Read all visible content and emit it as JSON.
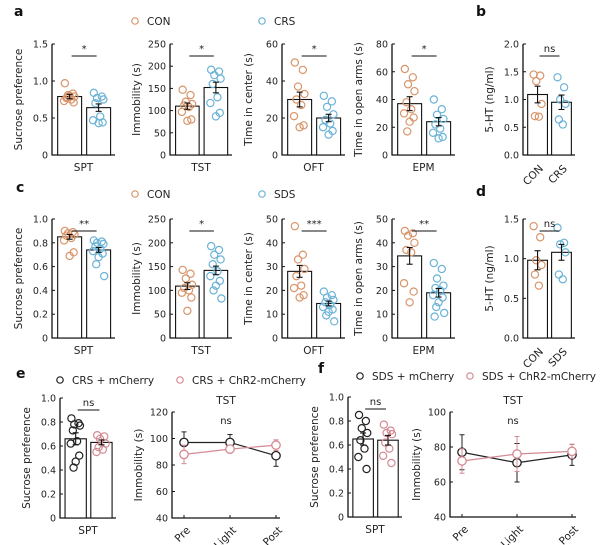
{
  "colors": {
    "con": "#d9956a",
    "stress": "#6bb3d6",
    "mcherry": "#222222",
    "chr2": "#d48a92",
    "axis": "#111111"
  },
  "chart_data": [
    {
      "panel": "a",
      "type": "bar",
      "legend": [
        {
          "label": "CON",
          "color_key": "con"
        },
        {
          "label": "CRS",
          "color_key": "stress"
        }
      ],
      "subplots": [
        {
          "xlabel": "SPT",
          "ylabel": "Sucrose preference",
          "ylim": [
            0,
            1.5
          ],
          "yticks": [
            "0",
            "0.5",
            "1.0",
            "1.5"
          ],
          "ytick_values": [
            0,
            0.5,
            1.0,
            1.5
          ],
          "sig": "*",
          "groups": [
            {
              "name": "CON",
              "mean": 0.79,
              "sem": 0.03,
              "points": [
                0.97,
                0.83,
                0.81,
                0.79,
                0.77,
                0.75,
                0.73,
                0.71,
                0.8,
                0.78
              ]
            },
            {
              "name": "CRS",
              "mean": 0.64,
              "sem": 0.05,
              "points": [
                0.84,
                0.79,
                0.77,
                0.75,
                0.7,
                0.52,
                0.47,
                0.44,
                0.43
              ]
            }
          ]
        },
        {
          "xlabel": "TST",
          "ylabel": "Immobility (s)",
          "ylim": [
            0,
            250
          ],
          "yticks": [
            "0",
            "50",
            "100",
            "150",
            "200",
            "250"
          ],
          "ytick_values": [
            0,
            50,
            100,
            150,
            200,
            250
          ],
          "sig": "*",
          "groups": [
            {
              "name": "CON",
              "mean": 110,
              "sem": 7,
              "points": [
                147,
                135,
                120,
                115,
                112,
                108,
                97,
                80,
                77
              ]
            },
            {
              "name": "CRS",
              "mean": 152,
              "sem": 12,
              "points": [
                192,
                188,
                180,
                172,
                160,
                130,
                117,
                95,
                87
              ]
            }
          ]
        },
        {
          "xlabel": "OFT",
          "ylabel": "Time in center (s)",
          "ylim": [
            0,
            60
          ],
          "yticks": [
            "0",
            "20",
            "40",
            "60"
          ],
          "ytick_values": [
            0,
            20,
            40,
            60
          ],
          "sig": "*",
          "groups": [
            {
              "name": "CON",
              "mean": 30,
              "sem": 4,
              "points": [
                50,
                46,
                37,
                33,
                30,
                27,
                21,
                16,
                15
              ]
            },
            {
              "name": "CRS",
              "mean": 20,
              "sem": 2,
              "points": [
                32,
                29,
                26,
                22,
                19,
                17,
                15,
                13,
                11
              ]
            }
          ]
        },
        {
          "xlabel": "EPM",
          "ylabel": "Time in open arms (s)",
          "ylim": [
            0,
            80
          ],
          "yticks": [
            "0",
            "20",
            "40",
            "60",
            "80"
          ],
          "ytick_values": [
            0,
            20,
            40,
            60,
            80
          ],
          "sig": "*",
          "groups": [
            {
              "name": "CON",
              "mean": 37,
              "sem": 5,
              "points": [
                62,
                56,
                51,
                46,
                38,
                33,
                30,
                27,
                24,
                17
              ]
            },
            {
              "name": "CRS",
              "mean": 24,
              "sem": 3,
              "points": [
                40,
                33,
                29,
                26,
                22,
                19,
                16,
                13,
                12
              ]
            }
          ]
        }
      ]
    },
    {
      "panel": "b",
      "type": "bar",
      "subplots": [
        {
          "xlabel": "",
          "xticks": [
            "CON",
            "CRS"
          ],
          "ylabel": "5-HT (ng/ml)",
          "ylim": [
            0,
            2.0
          ],
          "yticks": [
            "0.0",
            "0.5",
            "1.0",
            "1.5",
            "2.0"
          ],
          "ytick_values": [
            0,
            0.5,
            1.0,
            1.5,
            2.0
          ],
          "sig": "ns",
          "groups": [
            {
              "name": "CON",
              "mean": 1.09,
              "sem": 0.15,
              "points": [
                1.45,
                1.43,
                1.33,
                0.92,
                0.7,
                0.69
              ]
            },
            {
              "name": "CRS",
              "mean": 0.95,
              "sem": 0.13,
              "points": [
                1.4,
                1.22,
                1.0,
                0.92,
                0.64,
                0.55
              ]
            }
          ]
        }
      ]
    },
    {
      "panel": "c",
      "type": "bar",
      "legend": [
        {
          "label": "CON",
          "color_key": "con"
        },
        {
          "label": "SDS",
          "color_key": "stress"
        }
      ],
      "subplots": [
        {
          "xlabel": "SPT",
          "ylabel": "Sucrose preference",
          "ylim": [
            0,
            1.0
          ],
          "yticks": [
            "0",
            "0.2",
            "0.4",
            "0.6",
            "0.8",
            "1.0"
          ],
          "ytick_values": [
            0,
            0.2,
            0.4,
            0.6,
            0.8,
            1.0
          ],
          "sig": "**",
          "groups": [
            {
              "name": "CON",
              "mean": 0.85,
              "sem": 0.02,
              "points": [
                0.9,
                0.89,
                0.88,
                0.87,
                0.86,
                0.84,
                0.82,
                0.72,
                0.69
              ]
            },
            {
              "name": "SDS",
              "mean": 0.74,
              "sem": 0.02,
              "points": [
                0.82,
                0.81,
                0.8,
                0.79,
                0.77,
                0.75,
                0.73,
                0.71,
                0.68,
                0.62,
                0.52
              ]
            }
          ]
        },
        {
          "xlabel": "TST",
          "ylabel": "Immobility (s)",
          "ylim": [
            0,
            250
          ],
          "yticks": [
            "0",
            "50",
            "100",
            "150",
            "200",
            "250"
          ],
          "ytick_values": [
            0,
            50,
            100,
            150,
            200,
            250
          ],
          "sig": "*",
          "groups": [
            {
              "name": "CON",
              "mean": 109,
              "sem": 7,
              "points": [
                143,
                135,
                125,
                112,
                105,
                100,
                95,
                85,
                57
              ]
            },
            {
              "name": "SDS",
              "mean": 142,
              "sem": 9,
              "points": [
                193,
                185,
                175,
                165,
                155,
                140,
                130,
                120,
                110,
                100,
                83
              ]
            }
          ]
        },
        {
          "xlabel": "OFT",
          "ylabel": "Time in center (s)",
          "ylim": [
            0,
            50
          ],
          "yticks": [
            "0",
            "10",
            "20",
            "30",
            "40",
            "50"
          ],
          "ytick_values": [
            0,
            10,
            20,
            30,
            40,
            50
          ],
          "sig": "***",
          "groups": [
            {
              "name": "CON",
              "mean": 28,
              "sem": 2.5,
              "points": [
                47,
                35,
                33,
                29,
                26,
                22,
                21,
                18,
                17
              ]
            },
            {
              "name": "SDS",
              "mean": 14.5,
              "sem": 1,
              "points": [
                19.5,
                18,
                17,
                16,
                15,
                14,
                13,
                12,
                11,
                9.5,
                7
              ]
            }
          ]
        },
        {
          "xlabel": "EPM",
          "ylabel": "Time in open arms (s)",
          "ylim": [
            0,
            50
          ],
          "yticks": [
            "0",
            "10",
            "20",
            "30",
            "40",
            "50"
          ],
          "ytick_values": [
            0,
            10,
            20,
            30,
            40,
            50
          ],
          "sig": "**",
          "groups": [
            {
              "name": "CON",
              "mean": 34.5,
              "sem": 3.5,
              "points": [
                45,
                44,
                43,
                40,
                37,
                36,
                23,
                19.5,
                15
              ]
            },
            {
              "name": "SDS",
              "mean": 19,
              "sem": 1.8,
              "points": [
                31.5,
                29,
                25,
                22,
                21,
                20,
                18,
                17,
                15,
                13,
                10.5,
                9
              ]
            }
          ]
        }
      ]
    },
    {
      "panel": "d",
      "type": "bar",
      "subplots": [
        {
          "xlabel": "",
          "xticks": [
            "CON",
            "SDS"
          ],
          "ylabel": "5-HT (ng/ml)",
          "ylim": [
            0,
            1.5
          ],
          "yticks": [
            "0.0",
            "0.5",
            "1.0",
            "1.5"
          ],
          "ytick_values": [
            0,
            0.5,
            1.0,
            1.5
          ],
          "sig": "ns",
          "groups": [
            {
              "name": "CON",
              "mean": 0.98,
              "sem": 0.12,
              "points": [
                1.41,
                1.27,
                0.98,
                0.92,
                0.8,
                0.66
              ]
            },
            {
              "name": "SDS",
              "mean": 1.08,
              "sem": 0.1,
              "points": [
                1.39,
                1.2,
                1.18,
                1.08,
                0.8,
                0.74
              ]
            }
          ]
        }
      ]
    },
    {
      "panel": "e",
      "type": "bar+line",
      "legend": [
        {
          "label": "CRS + mCherry",
          "color_key": "mcherry"
        },
        {
          "label": "CRS + ChR2-mCherry",
          "color_key": "chr2"
        }
      ],
      "subplots": [
        {
          "kind": "bar",
          "xlabel": "SPT",
          "ylabel": "Sucrose preference",
          "ylim": [
            0,
            1.0
          ],
          "yticks": [
            "0",
            "0.2",
            "0.4",
            "0.6",
            "0.8",
            "1.0"
          ],
          "ytick_values": [
            0,
            0.2,
            0.4,
            0.6,
            0.8,
            1.0
          ],
          "sig": "ns",
          "groups": [
            {
              "name": "CRS + mCherry",
              "mean": 0.66,
              "sem": 0.05,
              "points": [
                0.83,
                0.79,
                0.78,
                0.77,
                0.73,
                0.64,
                0.62,
                0.52,
                0.47,
                0.42
              ]
            },
            {
              "name": "CRS + ChR2-mCherry",
              "mean": 0.63,
              "sem": 0.02,
              "points": [
                0.69,
                0.68,
                0.66,
                0.62,
                0.59,
                0.57,
                0.55
              ]
            }
          ]
        },
        {
          "kind": "line",
          "title": "TST",
          "ylabel": "Immobility (s)",
          "ylim": [
            40,
            120
          ],
          "yticks": [
            "40",
            "60",
            "80",
            "100",
            "120"
          ],
          "ytick_values": [
            40,
            60,
            80,
            100,
            120
          ],
          "x": [
            "Pre",
            "Light",
            "Post"
          ],
          "sig": "ns",
          "series": [
            {
              "name": "CRS + mCherry",
              "values": [
                97,
                97,
                87
              ],
              "sem": [
                8,
                6,
                8
              ]
            },
            {
              "name": "CRS + ChR2-mCherry",
              "values": [
                88,
                92,
                95
              ],
              "sem": [
                7,
                3,
                4
              ]
            }
          ]
        }
      ]
    },
    {
      "panel": "f",
      "type": "bar+line",
      "legend": [
        {
          "label": "SDS + mCherry",
          "color_key": "mcherry"
        },
        {
          "label": "SDS + ChR2-mCherry",
          "color_key": "chr2"
        }
      ],
      "subplots": [
        {
          "kind": "bar",
          "xlabel": "SPT",
          "ylabel": "Sucrose preference",
          "ylim": [
            0,
            1.0
          ],
          "yticks": [
            "0",
            "0.2",
            "0.4",
            "0.6",
            "0.8",
            "1.0"
          ],
          "ytick_values": [
            0,
            0.2,
            0.4,
            0.6,
            0.8,
            1.0
          ],
          "sig": "ns",
          "groups": [
            {
              "name": "SDS + mCherry",
              "mean": 0.65,
              "sem": 0.05,
              "points": [
                0.85,
                0.8,
                0.74,
                0.7,
                0.64,
                0.57,
                0.5,
                0.4
              ]
            },
            {
              "name": "SDS + ChR2-mCherry",
              "mean": 0.64,
              "sem": 0.04,
              "points": [
                0.77,
                0.72,
                0.7,
                0.69,
                0.62,
                0.57,
                0.51,
                0.45
              ]
            }
          ]
        },
        {
          "kind": "line",
          "title": "TST",
          "ylabel": "Immobility (s)",
          "ylim": [
            40,
            100
          ],
          "yticks": [
            "40",
            "60",
            "80",
            "100"
          ],
          "ytick_values": [
            40,
            60,
            80,
            100
          ],
          "x": [
            "Pre",
            "Light",
            "Post"
          ],
          "sig": "ns",
          "series": [
            {
              "name": "SDS + mCherry",
              "values": [
                77,
                71,
                75.5
              ],
              "sem": [
                10,
                11,
                6
              ]
            },
            {
              "name": "SDS + ChR2-mCherry",
              "values": [
                72,
                76,
                77.5
              ],
              "sem": [
                7,
                10,
                4
              ]
            }
          ]
        }
      ]
    }
  ]
}
